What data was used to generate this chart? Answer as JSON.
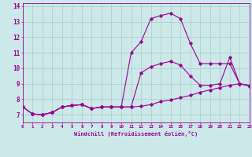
{
  "xlabel": "Windchill (Refroidissement éolien,°C)",
  "bg_color": "#cce8e8",
  "line_color": "#990099",
  "grid_color": "#aacccc",
  "xlim": [
    0,
    23
  ],
  "ylim": [
    6.5,
    14.2
  ],
  "xticks": [
    0,
    1,
    2,
    3,
    4,
    5,
    6,
    7,
    8,
    9,
    10,
    11,
    12,
    13,
    14,
    15,
    16,
    17,
    18,
    19,
    20,
    21,
    22,
    23
  ],
  "yticks": [
    7,
    8,
    9,
    10,
    11,
    12,
    13,
    14
  ],
  "lines": [
    {
      "x": [
        0,
        1,
        2,
        3,
        4,
        5,
        6,
        7,
        8,
        9,
        10,
        11,
        12,
        13,
        14,
        15,
        16,
        17,
        18,
        19,
        20,
        21,
        22,
        23
      ],
      "y": [
        7.5,
        7.05,
        7.0,
        7.15,
        7.5,
        7.6,
        7.65,
        7.4,
        7.5,
        7.5,
        7.5,
        11.0,
        11.7,
        13.2,
        13.4,
        13.55,
        13.2,
        11.6,
        10.3,
        10.3,
        10.3,
        10.3,
        9.0,
        8.9
      ]
    },
    {
      "x": [
        0,
        1,
        2,
        3,
        4,
        5,
        6,
        7,
        8,
        9,
        10,
        11,
        12,
        13,
        14,
        15,
        16,
        17,
        18,
        19,
        20,
        21,
        22,
        23
      ],
      "y": [
        7.5,
        7.05,
        7.0,
        7.15,
        7.5,
        7.6,
        7.65,
        7.4,
        7.5,
        7.5,
        7.5,
        7.5,
        9.7,
        10.1,
        10.3,
        10.45,
        10.2,
        9.5,
        8.9,
        8.9,
        9.0,
        10.7,
        9.0,
        8.85
      ]
    },
    {
      "x": [
        0,
        1,
        2,
        3,
        4,
        5,
        6,
        7,
        8,
        9,
        10,
        11,
        12,
        13,
        14,
        15,
        16,
        17,
        18,
        19,
        20,
        21,
        22,
        23
      ],
      "y": [
        7.5,
        7.05,
        7.0,
        7.15,
        7.5,
        7.6,
        7.65,
        7.4,
        7.5,
        7.5,
        7.5,
        7.5,
        7.55,
        7.65,
        7.85,
        7.95,
        8.1,
        8.25,
        8.45,
        8.6,
        8.75,
        8.9,
        9.0,
        8.85
      ]
    }
  ]
}
